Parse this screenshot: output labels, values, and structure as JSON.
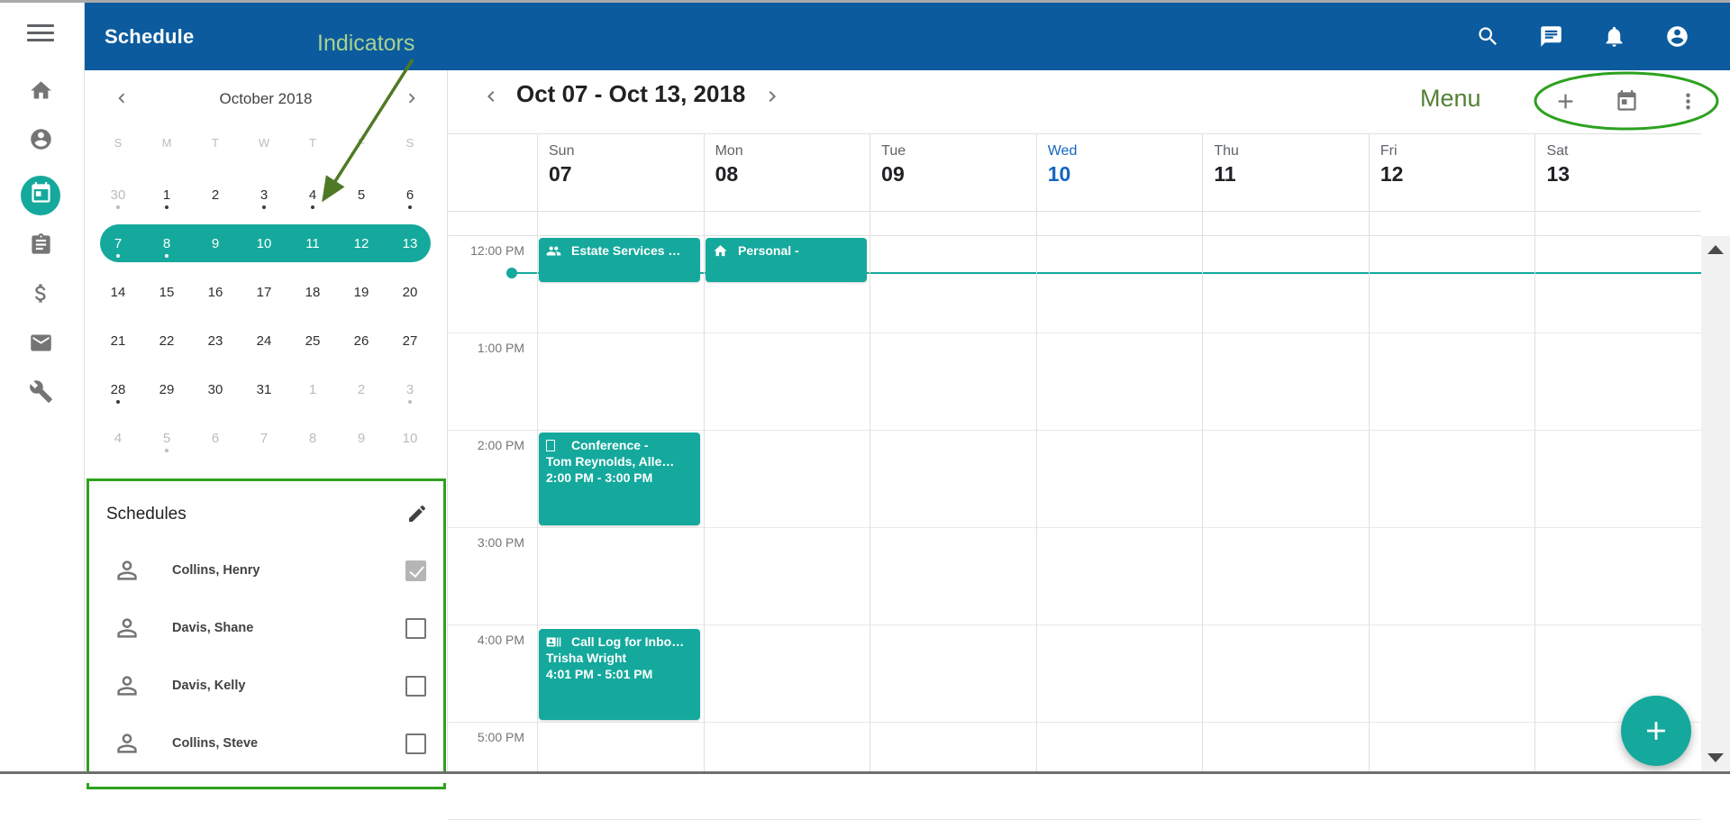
{
  "app_bar": {
    "title": "Schedule",
    "icons": [
      {
        "icon": "search"
      },
      {
        "icon": "chat"
      },
      {
        "icon": "notifications"
      },
      {
        "icon": "account"
      }
    ]
  },
  "nav_rail": {
    "items": [
      {
        "icon": "home",
        "cls": ""
      },
      {
        "icon": "account",
        "cls": ""
      },
      {
        "icon": "schedule",
        "cls": "active"
      },
      {
        "icon": "tasks",
        "cls": ""
      },
      {
        "icon": "billing",
        "cls": ""
      },
      {
        "icon": "mail",
        "cls": ""
      },
      {
        "icon": "tools",
        "cls": ""
      }
    ]
  },
  "annotations": {
    "indicators_label": "Indicators",
    "menu_label": "Menu"
  },
  "mini_calendar": {
    "title": "October 2018",
    "weekdays": [
      {
        "d": "S"
      },
      {
        "d": "M"
      },
      {
        "d": "T"
      },
      {
        "d": "W"
      },
      {
        "d": "T"
      },
      {
        "d": "F"
      },
      {
        "d": "S"
      }
    ],
    "cells": [
      {
        "n": "30",
        "cls": "muted dot"
      },
      {
        "n": "1",
        "cls": "dot"
      },
      {
        "n": "2",
        "cls": ""
      },
      {
        "n": "3",
        "cls": "dot"
      },
      {
        "n": "4",
        "cls": "dot"
      },
      {
        "n": "5",
        "cls": ""
      },
      {
        "n": "6",
        "cls": "dot"
      },
      {
        "n": "7",
        "cls": "sel dot"
      },
      {
        "n": "8",
        "cls": "sel dot"
      },
      {
        "n": "9",
        "cls": "sel"
      },
      {
        "n": "10",
        "cls": "sel"
      },
      {
        "n": "11",
        "cls": "sel"
      },
      {
        "n": "12",
        "cls": "sel"
      },
      {
        "n": "13",
        "cls": "sel"
      },
      {
        "n": "14",
        "cls": ""
      },
      {
        "n": "15",
        "cls": ""
      },
      {
        "n": "16",
        "cls": ""
      },
      {
        "n": "17",
        "cls": ""
      },
      {
        "n": "18",
        "cls": ""
      },
      {
        "n": "19",
        "cls": ""
      },
      {
        "n": "20",
        "cls": ""
      },
      {
        "n": "21",
        "cls": ""
      },
      {
        "n": "22",
        "cls": ""
      },
      {
        "n": "23",
        "cls": ""
      },
      {
        "n": "24",
        "cls": ""
      },
      {
        "n": "25",
        "cls": ""
      },
      {
        "n": "26",
        "cls": ""
      },
      {
        "n": "27",
        "cls": ""
      },
      {
        "n": "28",
        "cls": "dot"
      },
      {
        "n": "29",
        "cls": ""
      },
      {
        "n": "30",
        "cls": ""
      },
      {
        "n": "31",
        "cls": ""
      },
      {
        "n": "1",
        "cls": "muted"
      },
      {
        "n": "2",
        "cls": "muted"
      },
      {
        "n": "3",
        "cls": "muted dot"
      },
      {
        "n": "4",
        "cls": "muted"
      },
      {
        "n": "5",
        "cls": "muted dot"
      },
      {
        "n": "6",
        "cls": "muted"
      },
      {
        "n": "7",
        "cls": "muted"
      },
      {
        "n": "8",
        "cls": "muted"
      },
      {
        "n": "9",
        "cls": "muted"
      },
      {
        "n": "10",
        "cls": "muted"
      }
    ]
  },
  "schedules": {
    "title": "Schedules",
    "people": [
      {
        "name": "Collins, Henry",
        "cls": "checked"
      },
      {
        "name": "Davis, Shane",
        "cls": ""
      },
      {
        "name": "Davis, Kelly",
        "cls": ""
      },
      {
        "name": "Collins, Steve",
        "cls": ""
      }
    ]
  },
  "week_view": {
    "range_label": "Oct 07 - Oct 13, 2018",
    "toolbar": [
      {
        "icon": "add"
      },
      {
        "icon": "calendar-today"
      },
      {
        "icon": "more-vert"
      }
    ],
    "days": [
      {
        "name": "Sun",
        "num": "07",
        "cls": ""
      },
      {
        "name": "Mon",
        "num": "08",
        "cls": ""
      },
      {
        "name": "Tue",
        "num": "09",
        "cls": ""
      },
      {
        "name": "Wed",
        "num": "10",
        "cls": "today"
      },
      {
        "name": "Thu",
        "num": "11",
        "cls": ""
      },
      {
        "name": "Fri",
        "num": "12",
        "cls": ""
      },
      {
        "name": "Sat",
        "num": "13",
        "cls": ""
      }
    ],
    "times": [
      {
        "t": "12:00 PM"
      },
      {
        "t": "1:00 PM"
      },
      {
        "t": "2:00 PM"
      },
      {
        "t": "3:00 PM"
      },
      {
        "t": "4:00 PM"
      },
      {
        "t": "5:00 PM"
      }
    ],
    "events": [
      {
        "day": 0,
        "start_min": 1,
        "dur_min": 27,
        "icon": "people-group",
        "lines": [
          "Estate Services …"
        ]
      },
      {
        "day": 1,
        "start_min": 1,
        "dur_min": 27,
        "icon": "home",
        "lines": [
          "Personal -"
        ]
      },
      {
        "day": 0,
        "start_min": 121,
        "dur_min": 57,
        "icon": "placeholder",
        "lines": [
          "Conference -",
          "Tom Reynolds, Alle…",
          "2:00 PM - 3:00 PM"
        ]
      },
      {
        "day": 0,
        "start_min": 242,
        "dur_min": 56,
        "icon": "contact-card",
        "lines": [
          "Call Log for Inbo…",
          "Trisha Wright",
          "4:01 PM - 5:01 PM"
        ]
      }
    ],
    "current_time_min": 23
  },
  "colors": {
    "header_blue": "#0b5b9e",
    "teal": "#14a99c",
    "today_blue": "#1565c0",
    "annotation_bright_green": "#2ea11f",
    "annotation_dark_green": "#538135",
    "annotation_light_green": "#a9d18e"
  }
}
